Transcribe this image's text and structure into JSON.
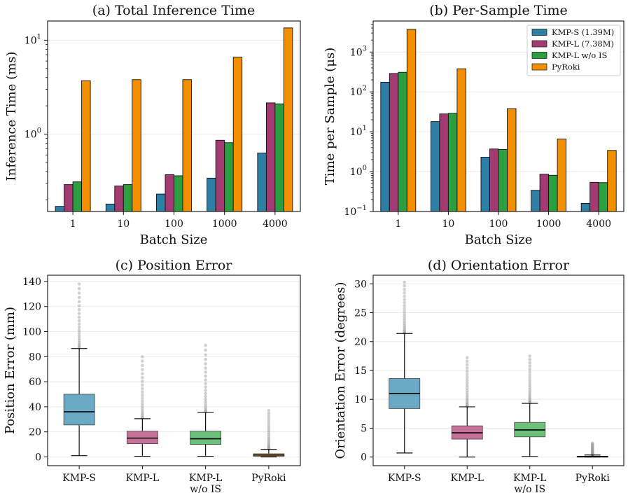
{
  "chart_data": [
    {
      "type": "bar",
      "title": "(a) Total Inference Time",
      "xlabel": "Batch Size",
      "ylabel": "Inference Time (ms)",
      "yscale": "log",
      "ylim": [
        0.15,
        16
      ],
      "ytick_labels": [
        {
          "value": 1,
          "base": "10",
          "exp": "0"
        },
        {
          "value": 10,
          "base": "10",
          "exp": "1"
        }
      ],
      "categories": [
        "1",
        "10",
        "100",
        "1000",
        "4000"
      ],
      "series": [
        {
          "name": "KMP-S (1.39M)",
          "color": "#2e7ea6",
          "values": [
            0.17,
            0.18,
            0.23,
            0.34,
            0.63
          ]
        },
        {
          "name": "KMP-L (7.38M)",
          "color": "#a23b72",
          "values": [
            0.29,
            0.28,
            0.37,
            0.86,
            2.15
          ]
        },
        {
          "name": "KMP-L w/o IS",
          "color": "#2ca040",
          "values": [
            0.31,
            0.29,
            0.36,
            0.81,
            2.1
          ]
        },
        {
          "name": "PyRoki",
          "color": "#f18f01",
          "values": [
            3.7,
            3.8,
            3.8,
            6.6,
            13.5
          ]
        }
      ]
    },
    {
      "type": "bar",
      "title": "(b) Per-Sample Time",
      "xlabel": "Batch Size",
      "ylabel": "Time per Sample (μs)",
      "yscale": "log",
      "ylim": [
        0.1,
        6000
      ],
      "ytick_labels": [
        {
          "value": 0.1,
          "base": "10",
          "exp": "−1"
        },
        {
          "value": 1,
          "base": "10",
          "exp": "0"
        },
        {
          "value": 10,
          "base": "10",
          "exp": "1"
        },
        {
          "value": 100,
          "base": "10",
          "exp": "2"
        },
        {
          "value": 1000,
          "base": "10",
          "exp": "3"
        }
      ],
      "legend_position": "upper right",
      "categories": [
        "1",
        "10",
        "100",
        "1000",
        "4000"
      ],
      "series": [
        {
          "name": "KMP-S (1.39M)",
          "color": "#2e7ea6",
          "values": [
            175,
            18,
            2.3,
            0.34,
            0.16
          ]
        },
        {
          "name": "KMP-L (7.38M)",
          "color": "#a23b72",
          "values": [
            290,
            28,
            3.7,
            0.86,
            0.54
          ]
        },
        {
          "name": "KMP-L w/o IS",
          "color": "#2ca040",
          "values": [
            310,
            29,
            3.6,
            0.81,
            0.53
          ]
        },
        {
          "name": "PyRoki",
          "color": "#f18f01",
          "values": [
            3700,
            380,
            38,
            6.6,
            3.4
          ]
        }
      ]
    },
    {
      "type": "box",
      "title": "(c) Position Error",
      "xlabel": "",
      "ylabel": "Position Error (mm)",
      "ylim": [
        -7,
        145
      ],
      "yticks": [
        0,
        20,
        40,
        60,
        80,
        100,
        120,
        140
      ],
      "categories": [
        "KMP-S",
        "KMP-L",
        "KMP-L\nw/o IS",
        "PyRoki"
      ],
      "boxes": [
        {
          "label": "KMP-S",
          "color": "#6baac7",
          "whislo": 1,
          "q1": 25.5,
          "median": 36,
          "q3": 50,
          "whishi": 86.5,
          "outlier_max": 138
        },
        {
          "label": "KMP-L",
          "color": "#c77199",
          "whislo": 0.5,
          "q1": 10.5,
          "median": 15,
          "q3": 20.5,
          "whishi": 30.5,
          "outlier_max": 80
        },
        {
          "label": "KMP-L w/o IS",
          "color": "#6cc17a",
          "whislo": 0.5,
          "q1": 10,
          "median": 14.5,
          "q3": 20.5,
          "whishi": 35.5,
          "outlier_max": 89
        },
        {
          "label": "PyRoki",
          "color": "#f5b255",
          "whislo": 0,
          "q1": 0.5,
          "median": 1.5,
          "q3": 2.5,
          "whishi": 6,
          "outlier_max": 37
        }
      ]
    },
    {
      "type": "box",
      "title": "(d) Orientation Error",
      "xlabel": "",
      "ylabel": "Orientation Error (degrees)",
      "ylim": [
        -1.5,
        31.5
      ],
      "yticks": [
        0,
        5,
        10,
        15,
        20,
        25,
        30
      ],
      "categories": [
        "KMP-S",
        "KMP-L",
        "KMP-L\nw/o IS",
        "PyRoki"
      ],
      "boxes": [
        {
          "label": "KMP-S",
          "color": "#6baac7",
          "whislo": 0.7,
          "q1": 8.4,
          "median": 11,
          "q3": 13.6,
          "whishi": 21.4,
          "outlier_max": 30.3
        },
        {
          "label": "KMP-L",
          "color": "#c77199",
          "whislo": 0,
          "q1": 3.1,
          "median": 4.2,
          "q3": 5.4,
          "whishi": 8.7,
          "outlier_max": 17.2
        },
        {
          "label": "KMP-L w/o IS",
          "color": "#6cc17a",
          "whislo": 0.1,
          "q1": 3.5,
          "median": 4.7,
          "q3": 6,
          "whishi": 9.3,
          "outlier_max": 17.5
        },
        {
          "label": "PyRoki",
          "color": "#f5b255",
          "whislo": 0,
          "q1": 0.02,
          "median": 0.08,
          "q3": 0.15,
          "whishi": 0.35,
          "outlier_max": 2.4
        }
      ]
    }
  ]
}
